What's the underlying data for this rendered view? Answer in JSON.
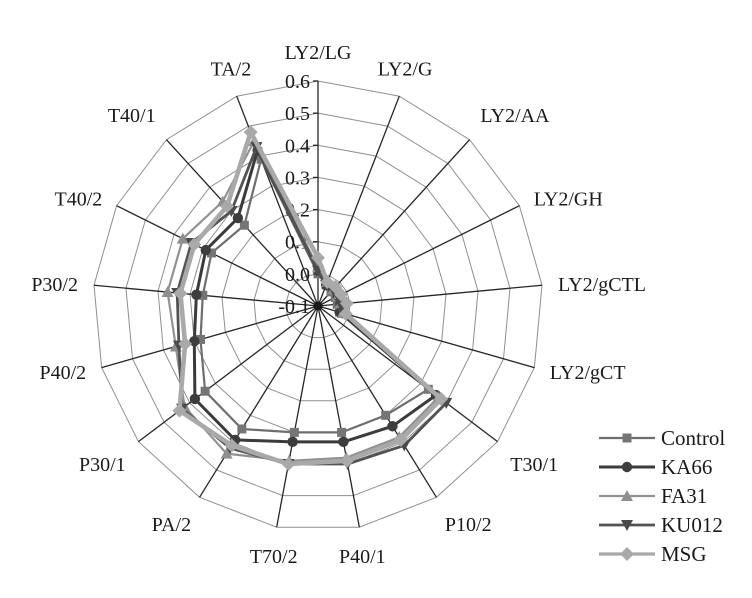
{
  "figure": {
    "background": "#ffffff",
    "text_color": "#1a1a1a",
    "grid_color": "#8f8f8f",
    "spoke_color": "#262626"
  },
  "chart_data": {
    "type": "radar",
    "title": "",
    "xlabel": "",
    "ylabel": "",
    "grid": true,
    "categories": [
      "LY2/LG",
      "LY2/G",
      "LY2/AA",
      "LY2/GH",
      "LY2/gCTL",
      "LY2/gCT",
      "T30/1",
      "P10/2",
      "P40/1",
      "T70/2",
      "PA/2",
      "P30/1",
      "P40/2",
      "P30/2",
      "T40/2",
      "T40/1",
      "TA/2"
    ],
    "radial_axis": {
      "min": -0.1,
      "max": 0.6,
      "step": 0.1,
      "tick_labels": [
        "0.6",
        "0.5",
        "0.4",
        "0.3",
        "0.2",
        "0.1",
        "0.0",
        "-0.1"
      ]
    },
    "legend": {
      "position": "right-bottom",
      "entries": [
        "Control",
        "KA66",
        "FA31",
        "KU012",
        "MSG"
      ]
    },
    "series": [
      {
        "name": "Control",
        "marker": "square",
        "color": "#757575",
        "line_color": "#6e6e6e",
        "line_width": 2.2,
        "values": [
          0.0,
          -0.03,
          -0.04,
          -0.04,
          -0.04,
          -0.03,
          0.33,
          0.3,
          0.3,
          0.3,
          0.35,
          0.34,
          0.28,
          0.26,
          0.27,
          0.24,
          0.39
        ]
      },
      {
        "name": "KA66",
        "marker": "circle",
        "color": "#3d3d3d",
        "line_color": "#3b3b3b",
        "line_width": 3.0,
        "values": [
          0.01,
          -0.03,
          -0.03,
          -0.03,
          -0.03,
          -0.03,
          0.36,
          0.34,
          0.33,
          0.33,
          0.39,
          0.38,
          0.3,
          0.28,
          0.29,
          0.27,
          0.42
        ]
      },
      {
        "name": "FA31",
        "marker": "triangle-up",
        "color": "#8f8f8f",
        "line_color": "#919191",
        "line_width": 2.2,
        "values": [
          0.02,
          -0.02,
          -0.03,
          -0.03,
          -0.03,
          -0.02,
          0.37,
          0.38,
          0.38,
          0.39,
          0.44,
          0.42,
          0.36,
          0.37,
          0.37,
          0.34,
          0.45
        ]
      },
      {
        "name": "KU012",
        "marker": "triangle-down",
        "color": "#4a4a4a",
        "line_color": "#525252",
        "line_width": 2.8,
        "values": [
          0.01,
          -0.03,
          -0.03,
          -0.03,
          -0.03,
          -0.02,
          0.4,
          0.41,
          0.4,
          0.4,
          0.42,
          0.43,
          0.35,
          0.34,
          0.34,
          0.3,
          0.43
        ]
      },
      {
        "name": "MSG",
        "marker": "diamond",
        "color": "#a9a9a9",
        "line_color": "#a9a9a9",
        "line_width": 4.6,
        "values": [
          0.05,
          -0.02,
          -0.02,
          -0.02,
          -0.01,
          -0.01,
          0.38,
          0.39,
          0.39,
          0.4,
          0.41,
          0.44,
          0.33,
          0.33,
          0.33,
          0.32,
          0.48
        ]
      }
    ]
  }
}
